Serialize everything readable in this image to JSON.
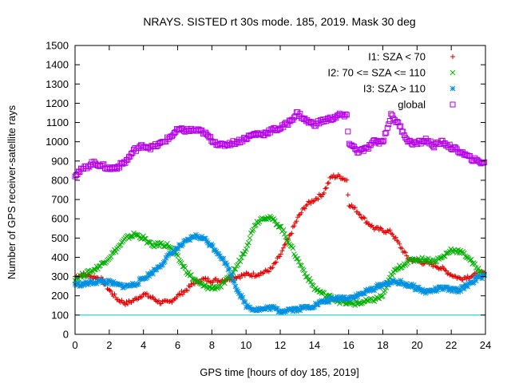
{
  "chart_data": {
    "type": "scatter",
    "title": "NRAYS. SISTED rt 30s mode. 185, 2019. Mask 30 deg",
    "xlabel": "GPS time [hours of doy 185, 2019]",
    "ylabel": "Number of GPS receiver-satellite rays",
    "xlim": [
      0,
      24
    ],
    "ylim": [
      0,
      1500
    ],
    "xticks": [
      "0",
      "2",
      "4",
      "6",
      "8",
      "10",
      "12",
      "14",
      "16",
      "18",
      "20",
      "22",
      "24"
    ],
    "yticks": [
      "0",
      "100",
      "200",
      "300",
      "400",
      "500",
      "600",
      "700",
      "800",
      "900",
      "1000",
      "1100",
      "1200",
      "1300",
      "1400",
      "1500"
    ],
    "reference_line": {
      "y": 100,
      "color": "#00c8c8"
    },
    "legend_position": "top-right",
    "series": [
      {
        "name": "I1: SZA < 70",
        "marker": "+",
        "color": "#e00000",
        "x": [
          0,
          0.5,
          1,
          1.5,
          2,
          2.5,
          3,
          3.5,
          4,
          4.5,
          5,
          5.5,
          6,
          6.5,
          7,
          7.5,
          8,
          8.5,
          9,
          9.5,
          10,
          10.5,
          11,
          11.5,
          12,
          12.5,
          13,
          13.5,
          14,
          14.5,
          15,
          15.5,
          15.9,
          16,
          16.5,
          17,
          17.5,
          18,
          18.5,
          19,
          19.5,
          20,
          20.5,
          21,
          21.5,
          22,
          22.5,
          23,
          23.5,
          24
        ],
        "y": [
          300,
          310,
          300,
          290,
          230,
          180,
          160,
          180,
          210,
          190,
          165,
          165,
          200,
          230,
          270,
          285,
          280,
          280,
          290,
          300,
          310,
          310,
          320,
          340,
          410,
          500,
          600,
          670,
          700,
          730,
          820,
          820,
          800,
          680,
          640,
          590,
          550,
          540,
          530,
          460,
          390,
          380,
          370,
          360,
          340,
          310,
          290,
          300,
          310,
          320
        ]
      },
      {
        "name": "I2: 70 <= SZA <= 110",
        "marker": "x",
        "color": "#00b000",
        "x": [
          0,
          0.5,
          1,
          1.5,
          2,
          2.5,
          3,
          3.5,
          4,
          4.5,
          5,
          5.5,
          6,
          6.5,
          7,
          7.5,
          8,
          8.5,
          9,
          9.5,
          10,
          10.5,
          11,
          11.5,
          12,
          12.5,
          13,
          13.5,
          14,
          14.5,
          15,
          15.5,
          16,
          16.5,
          17,
          17.5,
          18,
          18.5,
          19,
          19.5,
          20,
          20.5,
          21,
          21.5,
          22,
          22.5,
          23,
          23.5,
          24
        ],
        "y": [
          290,
          310,
          330,
          360,
          400,
          450,
          500,
          520,
          500,
          460,
          470,
          460,
          400,
          330,
          280,
          250,
          240,
          250,
          290,
          360,
          450,
          570,
          610,
          600,
          560,
          480,
          390,
          310,
          240,
          210,
          190,
          170,
          160,
          160,
          170,
          180,
          200,
          310,
          350,
          380,
          390,
          390,
          380,
          400,
          440,
          430,
          400,
          340,
          310
        ]
      },
      {
        "name": "I3: SZA > 110",
        "marker": "*",
        "color": "#0090e0",
        "x": [
          0,
          0.5,
          1,
          1.5,
          2,
          2.5,
          3,
          3.5,
          4,
          4.5,
          5,
          5.5,
          6,
          6.5,
          7,
          7.5,
          8,
          8.5,
          9,
          9.5,
          10,
          10.5,
          11,
          11.5,
          12,
          12.5,
          13,
          13.5,
          14,
          14.5,
          15,
          15.5,
          16,
          16.5,
          17,
          17.5,
          18,
          18.5,
          19,
          19.5,
          20,
          20.5,
          21,
          21.5,
          22,
          22.5,
          23,
          23.5,
          24
        ],
        "y": [
          260,
          260,
          270,
          275,
          270,
          255,
          250,
          260,
          290,
          320,
          360,
          410,
          450,
          480,
          510,
          500,
          460,
          410,
          340,
          230,
          150,
          130,
          130,
          140,
          120,
          130,
          130,
          140,
          150,
          170,
          180,
          190,
          190,
          200,
          220,
          240,
          260,
          270,
          270,
          255,
          240,
          220,
          230,
          240,
          230,
          230,
          260,
          290,
          300
        ]
      },
      {
        "name": "global",
        "marker": "square",
        "color": "#b400e6",
        "x": [
          0,
          0.5,
          1,
          1.5,
          2,
          2.5,
          3,
          3.5,
          4,
          4.5,
          5,
          5.5,
          6,
          6.5,
          7,
          7.5,
          8,
          8.5,
          9,
          9.5,
          10,
          10.5,
          11,
          11.5,
          12,
          12.5,
          13,
          13.5,
          14,
          14.5,
          15,
          15.5,
          15.9,
          16,
          16.5,
          17,
          17.5,
          18,
          18.5,
          19,
          19.5,
          20,
          20.5,
          21,
          21.5,
          22,
          22.5,
          23,
          23.5,
          24
        ],
        "y": [
          830,
          860,
          890,
          880,
          860,
          870,
          900,
          960,
          980,
          970,
          990,
          1020,
          1060,
          1060,
          1060,
          1050,
          1010,
          980,
          990,
          1000,
          1020,
          1040,
          1040,
          1060,
          1070,
          1100,
          1150,
          1110,
          1090,
          1110,
          1120,
          1140,
          1130,
          1000,
          950,
          960,
          1000,
          1000,
          1140,
          1080,
          1000,
          990,
          1010,
          980,
          1000,
          970,
          950,
          920,
          900,
          890
        ]
      }
    ]
  }
}
